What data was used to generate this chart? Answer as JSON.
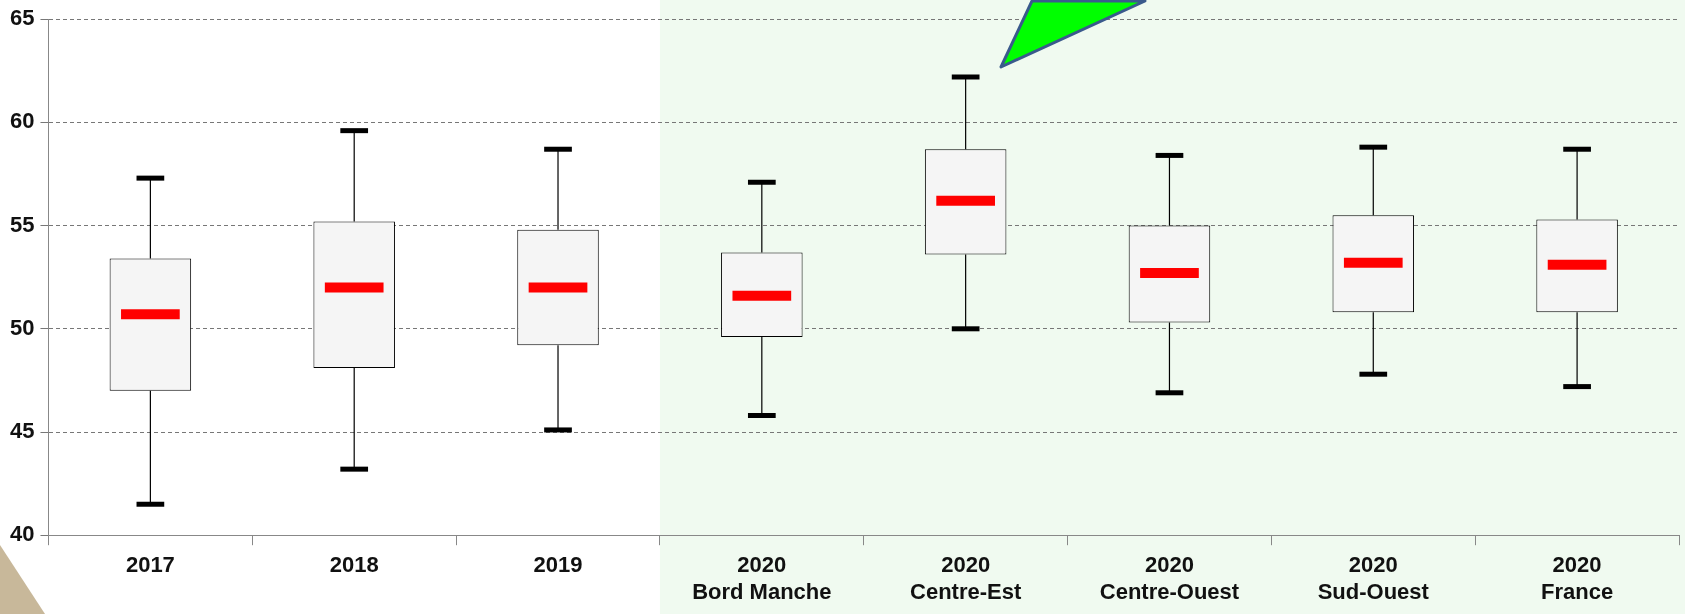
{
  "chart_data": {
    "type": "box",
    "categories": [
      "2017",
      "2018",
      "2019",
      "2020\nBord Manche",
      "2020\nCentre-Est",
      "2020\nCentre-Ouest",
      "2020\nSud-Ouest",
      "2020\nFrance"
    ],
    "boxes": [
      {
        "low": 41.5,
        "q1": 47.0,
        "median": 50.7,
        "q3": 53.4,
        "high": 57.3
      },
      {
        "low": 43.2,
        "q1": 48.1,
        "median": 52.0,
        "q3": 55.2,
        "high": 59.6
      },
      {
        "low": 45.1,
        "q1": 49.2,
        "median": 52.0,
        "q3": 54.8,
        "high": 58.7
      },
      {
        "low": 45.8,
        "q1": 49.6,
        "median": 51.6,
        "q3": 53.7,
        "high": 57.1
      },
      {
        "low": 50.0,
        "q1": 53.6,
        "median": 56.2,
        "q3": 58.7,
        "high": 62.2
      },
      {
        "low": 46.9,
        "q1": 50.3,
        "median": 52.7,
        "q3": 55.0,
        "high": 58.4
      },
      {
        "low": 47.8,
        "q1": 50.8,
        "median": 53.2,
        "q3": 55.5,
        "high": 58.8
      },
      {
        "low": 47.2,
        "q1": 50.8,
        "median": 53.1,
        "q3": 55.3,
        "high": 58.7
      }
    ],
    "color": "#000000",
    "ylim": [
      40,
      65
    ],
    "yticks": [
      40,
      45,
      50,
      55,
      60,
      65
    ],
    "grid": "y",
    "bands": [
      {
        "axis": "x",
        "from": "2020\nBord Manche",
        "to": "2020\nFrance",
        "color": "#f0faf0"
      }
    ]
  }
}
